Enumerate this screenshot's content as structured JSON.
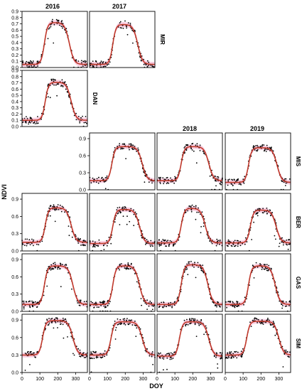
{
  "figure": {
    "ylabel": "NDVI",
    "xlabel": "DOY",
    "columns": [
      "2016",
      "2017",
      "2018",
      "2019"
    ],
    "rows": [
      "MIR",
      "DAN",
      "MIS",
      "BER",
      "GAS",
      "SIM"
    ],
    "colors": {
      "fit_line": "#c0392b",
      "points": "#000000",
      "band": "#f4a6c8",
      "frame": "#000000"
    }
  },
  "chart_data": [
    {
      "site": "MIR",
      "year": "2016",
      "type": "scatter",
      "y_ticks": [
        "0.0",
        "0.1",
        "0.2",
        "0.3",
        "0.4",
        "0.5",
        "0.6",
        "0.7",
        "0.8",
        "0.9"
      ],
      "x_ticks": [],
      "fit": {
        "base": 0.05,
        "peak": 0.72,
        "rise_doy": 125,
        "fall_doy": 265
      }
    },
    {
      "site": "MIR",
      "year": "2017",
      "type": "scatter",
      "y_ticks": [],
      "x_ticks": [],
      "fit": {
        "base": 0.05,
        "peak": 0.69,
        "rise_doy": 130,
        "fall_doy": 270
      }
    },
    {
      "site": "DAN",
      "year": "2016",
      "type": "scatter",
      "y_ticks": [
        "0.0",
        "0.1",
        "0.2",
        "0.3",
        "0.4",
        "0.5",
        "0.6",
        "0.7",
        "0.8",
        "0.9"
      ],
      "x_ticks": [],
      "fit": {
        "base": 0.1,
        "peak": 0.71,
        "rise_doy": 130,
        "fall_doy": 275
      }
    },
    {
      "site": "MIS",
      "year": "2017",
      "type": "scatter",
      "y_ticks": [
        "0.0",
        "0.3",
        "0.6",
        "0.9"
      ],
      "x_ticks": [],
      "fit": {
        "base": 0.16,
        "peak": 0.76,
        "rise_doy": 125,
        "fall_doy": 295
      }
    },
    {
      "site": "MIS",
      "year": "2018",
      "type": "scatter",
      "y_ticks": [],
      "x_ticks": [],
      "fit": {
        "base": 0.16,
        "peak": 0.76,
        "rise_doy": 135,
        "fall_doy": 290
      }
    },
    {
      "site": "MIS",
      "year": "2019",
      "type": "scatter",
      "y_ticks": [],
      "x_ticks": [],
      "fit": {
        "base": 0.13,
        "peak": 0.74,
        "rise_doy": 130,
        "fall_doy": 290
      }
    },
    {
      "site": "BER",
      "year": "2016",
      "type": "scatter",
      "y_ticks": [
        "0.0",
        "0.3",
        "0.6",
        "0.9"
      ],
      "x_ticks": [],
      "fit": {
        "base": 0.15,
        "peak": 0.75,
        "rise_doy": 130,
        "fall_doy": 275
      }
    },
    {
      "site": "BER",
      "year": "2017",
      "type": "scatter",
      "y_ticks": [],
      "x_ticks": [],
      "fit": {
        "base": 0.13,
        "peak": 0.72,
        "rise_doy": 130,
        "fall_doy": 280
      }
    },
    {
      "site": "BER",
      "year": "2018",
      "type": "scatter",
      "y_ticks": [],
      "x_ticks": [],
      "fit": {
        "base": 0.14,
        "peak": 0.74,
        "rise_doy": 135,
        "fall_doy": 270
      }
    },
    {
      "site": "BER",
      "year": "2019",
      "type": "scatter",
      "y_ticks": [],
      "x_ticks": [],
      "fit": {
        "base": 0.14,
        "peak": 0.71,
        "rise_doy": 140,
        "fall_doy": 285
      }
    },
    {
      "site": "GAS",
      "year": "2016",
      "type": "scatter",
      "y_ticks": [
        "0.0",
        "0.3",
        "0.6",
        "0.9"
      ],
      "x_ticks": [],
      "fit": {
        "base": 0.12,
        "peak": 0.79,
        "rise_doy": 125,
        "fall_doy": 285
      }
    },
    {
      "site": "GAS",
      "year": "2017",
      "type": "scatter",
      "y_ticks": [],
      "x_ticks": [],
      "fit": {
        "base": 0.12,
        "peak": 0.79,
        "rise_doy": 130,
        "fall_doy": 280
      }
    },
    {
      "site": "GAS",
      "year": "2018",
      "type": "scatter",
      "y_ticks": [],
      "x_ticks": [],
      "fit": {
        "base": 0.12,
        "peak": 0.81,
        "rise_doy": 135,
        "fall_doy": 285
      }
    },
    {
      "site": "GAS",
      "year": "2019",
      "type": "scatter",
      "y_ticks": [],
      "x_ticks": [],
      "fit": {
        "base": 0.12,
        "peak": 0.79,
        "rise_doy": 130,
        "fall_doy": 280
      }
    },
    {
      "site": "SIM",
      "year": "2016",
      "type": "scatter",
      "y_ticks": [
        "0.0",
        "0.3",
        "0.6",
        "0.9"
      ],
      "x_ticks": [
        "0",
        "100",
        "200",
        "300"
      ],
      "fit": {
        "base": 0.3,
        "peak": 0.89,
        "rise_doy": 115,
        "fall_doy": 285
      }
    },
    {
      "site": "SIM",
      "year": "2017",
      "type": "scatter",
      "y_ticks": [],
      "x_ticks": [
        "0",
        "100",
        "200",
        "300"
      ],
      "fit": {
        "base": 0.3,
        "peak": 0.87,
        "rise_doy": 120,
        "fall_doy": 295
      }
    },
    {
      "site": "SIM",
      "year": "2018",
      "type": "scatter",
      "y_ticks": [],
      "x_ticks": [
        "0",
        "100",
        "200",
        "300"
      ],
      "fit": {
        "base": 0.28,
        "peak": 0.87,
        "rise_doy": 125,
        "fall_doy": 290
      }
    },
    {
      "site": "SIM",
      "year": "2019",
      "type": "scatter",
      "y_ticks": [],
      "x_ticks": [
        "0",
        "100",
        "200",
        "300"
      ],
      "fit": {
        "base": 0.3,
        "peak": 0.88,
        "rise_doy": 120,
        "fall_doy": 300
      }
    }
  ]
}
